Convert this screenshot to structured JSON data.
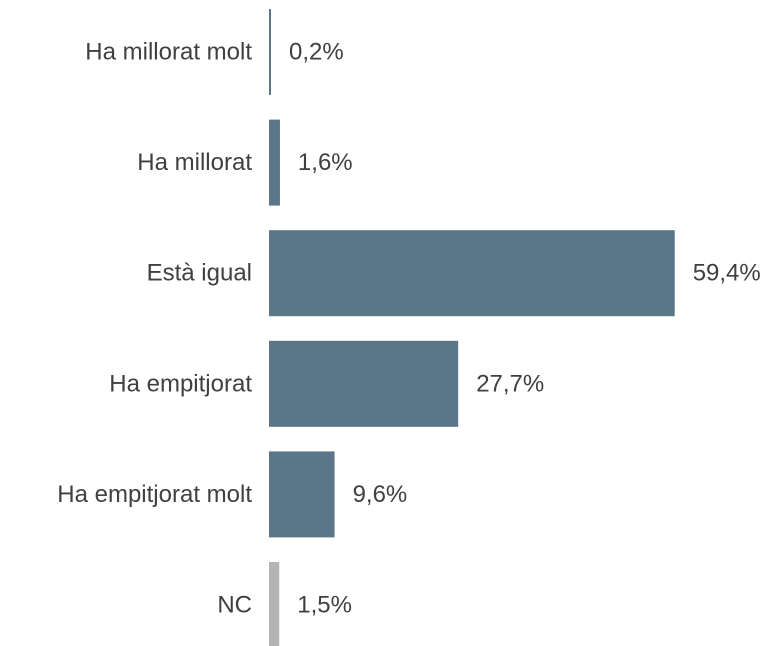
{
  "chart_data": {
    "type": "bar",
    "orientation": "horizontal",
    "categories": [
      "Ha millorat molt",
      "Ha millorat",
      "Està igual",
      "Ha empitjorat",
      "Ha empitjorat molt",
      "NC"
    ],
    "values": [
      0.2,
      1.6,
      59.4,
      27.7,
      9.6,
      1.5
    ],
    "value_labels": [
      "0,2%",
      "1,6%",
      "59,4%",
      "27,7%",
      "9,6%",
      "1,5%"
    ],
    "colors": [
      "#5b7589",
      "#5b7589",
      "#5b7589",
      "#5b7589",
      "#5b7589",
      "#b4b4b4"
    ],
    "title": "",
    "xlabel": "",
    "ylabel": "",
    "xlim": [
      0,
      100
    ],
    "grid": false,
    "legend": "none"
  }
}
